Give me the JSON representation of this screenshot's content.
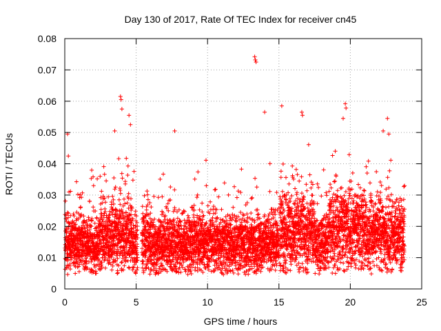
{
  "chart_data": {
    "type": "scatter",
    "title": "Day 130 of 2017, Rate Of TEC Index for receiver cn45",
    "xlabel": "GPS time / hours",
    "ylabel": "ROTI / TECUs",
    "xlim": [
      0,
      25
    ],
    "ylim": [
      0,
      0.08
    ],
    "x_ticks": [
      "0",
      "5",
      "10",
      "15",
      "20",
      "25"
    ],
    "y_ticks": [
      "0",
      "0.01",
      "0.02",
      "0.03",
      "0.04",
      "0.05",
      "0.06",
      "0.07",
      "0.08"
    ],
    "grid": true,
    "marker": "+",
    "color": "#ff0000",
    "gaps": [
      [
        5.1,
        5.4
      ],
      [
        15.0,
        15.05
      ]
    ],
    "data_density": "~5700 samples, continuous coverage 0-23.8 h, bulk 0.008-0.028",
    "notable_points": [
      {
        "x": 0.2,
        "y": 0.0495
      },
      {
        "x": 0.25,
        "y": 0.0425
      },
      {
        "x": 3.9,
        "y": 0.0615
      },
      {
        "x": 3.95,
        "y": 0.0605
      },
      {
        "x": 4.0,
        "y": 0.0575
      },
      {
        "x": 3.5,
        "y": 0.0505
      },
      {
        "x": 4.5,
        "y": 0.0555
      },
      {
        "x": 4.6,
        "y": 0.0525
      },
      {
        "x": 7.7,
        "y": 0.0505
      },
      {
        "x": 13.3,
        "y": 0.0742
      },
      {
        "x": 13.35,
        "y": 0.0732
      },
      {
        "x": 13.4,
        "y": 0.0725
      },
      {
        "x": 15.2,
        "y": 0.0585
      },
      {
        "x": 14.0,
        "y": 0.0565
      },
      {
        "x": 16.6,
        "y": 0.0565
      },
      {
        "x": 16.65,
        "y": 0.0555
      },
      {
        "x": 19.65,
        "y": 0.0592
      },
      {
        "x": 19.7,
        "y": 0.0578
      },
      {
        "x": 19.5,
        "y": 0.0545
      },
      {
        "x": 22.6,
        "y": 0.0545
      },
      {
        "x": 22.3,
        "y": 0.0505
      },
      {
        "x": 22.7,
        "y": 0.0495
      }
    ]
  }
}
